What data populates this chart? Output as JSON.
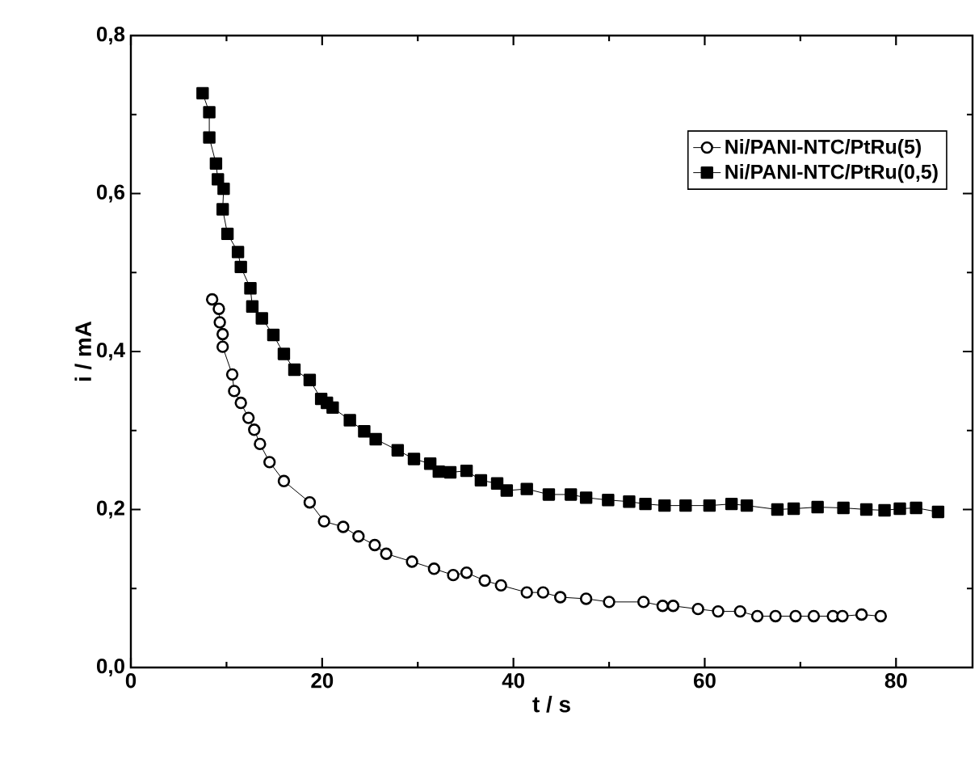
{
  "chart_data": {
    "type": "line",
    "xlabel": "t / s",
    "ylabel": "i / mA",
    "xlim": [
      0,
      88
    ],
    "ylim": [
      0,
      0.8
    ],
    "xticks": [
      0,
      20,
      40,
      60,
      80
    ],
    "yticks": [
      {
        "value": 0,
        "label": "0,0"
      },
      {
        "value": 0.2,
        "label": "0,2"
      },
      {
        "value": 0.4,
        "label": "0,4"
      },
      {
        "value": 0.6,
        "label": "0,6"
      },
      {
        "value": 0.8,
        "label": "0,8"
      }
    ],
    "legend": "top right",
    "grid": false,
    "line_style": "solid",
    "series": [
      {
        "name": "Ni/PANI-NTC/PtRu(5)",
        "color": "#000000",
        "marker": "circle",
        "x": [
          8.5,
          9.2,
          9.3,
          9.6,
          9.6,
          10.6,
          10.8,
          11.5,
          12.3,
          12.9,
          13.5,
          14.5,
          16.0,
          18.7,
          20.2,
          22.2,
          23.8,
          25.5,
          26.7,
          29.4,
          31.7,
          33.7,
          35.1,
          37.0,
          38.7,
          41.4,
          43.1,
          44.9,
          47.6,
          50.0,
          53.6,
          55.6,
          56.7,
          59.3,
          61.4,
          63.7,
          65.5,
          67.4,
          69.5,
          71.4,
          73.4,
          74.4,
          76.4,
          78.4
        ],
        "values": [
          0.466,
          0.454,
          0.437,
          0.422,
          0.406,
          0.371,
          0.35,
          0.335,
          0.316,
          0.301,
          0.283,
          0.26,
          0.236,
          0.209,
          0.185,
          0.178,
          0.166,
          0.155,
          0.144,
          0.134,
          0.125,
          0.117,
          0.12,
          0.11,
          0.104,
          0.095,
          0.095,
          0.089,
          0.087,
          0.083,
          0.083,
          0.078,
          0.078,
          0.074,
          0.071,
          0.071,
          0.065,
          0.065,
          0.065,
          0.065,
          0.065,
          0.065,
          0.067,
          0.065
        ]
      },
      {
        "name": "Ni/PANI-NTC/PtRu(0,5)",
        "color": "#000000",
        "marker": "square",
        "x": [
          7.5,
          8.2,
          8.2,
          8.9,
          9.1,
          9.7,
          9.6,
          10.1,
          11.2,
          11.5,
          12.5,
          12.7,
          13.7,
          14.9,
          16.0,
          17.1,
          18.7,
          19.9,
          20.5,
          21.1,
          22.9,
          24.4,
          25.6,
          27.9,
          29.6,
          31.3,
          32.2,
          33.4,
          35.1,
          36.6,
          38.3,
          39.3,
          41.4,
          43.7,
          46.0,
          47.6,
          49.9,
          52.1,
          53.8,
          55.8,
          58.0,
          60.5,
          62.8,
          64.4,
          67.6,
          69.3,
          71.8,
          74.5,
          76.9,
          78.8,
          80.4,
          82.1,
          84.4
        ],
        "values": [
          0.727,
          0.703,
          0.671,
          0.638,
          0.618,
          0.606,
          0.58,
          0.549,
          0.526,
          0.507,
          0.48,
          0.457,
          0.442,
          0.421,
          0.397,
          0.377,
          0.364,
          0.34,
          0.335,
          0.329,
          0.313,
          0.299,
          0.289,
          0.275,
          0.264,
          0.258,
          0.248,
          0.247,
          0.249,
          0.237,
          0.233,
          0.224,
          0.226,
          0.219,
          0.219,
          0.215,
          0.212,
          0.21,
          0.207,
          0.205,
          0.205,
          0.205,
          0.207,
          0.205,
          0.2,
          0.201,
          0.203,
          0.202,
          0.2,
          0.199,
          0.201,
          0.202,
          0.197
        ]
      }
    ]
  }
}
